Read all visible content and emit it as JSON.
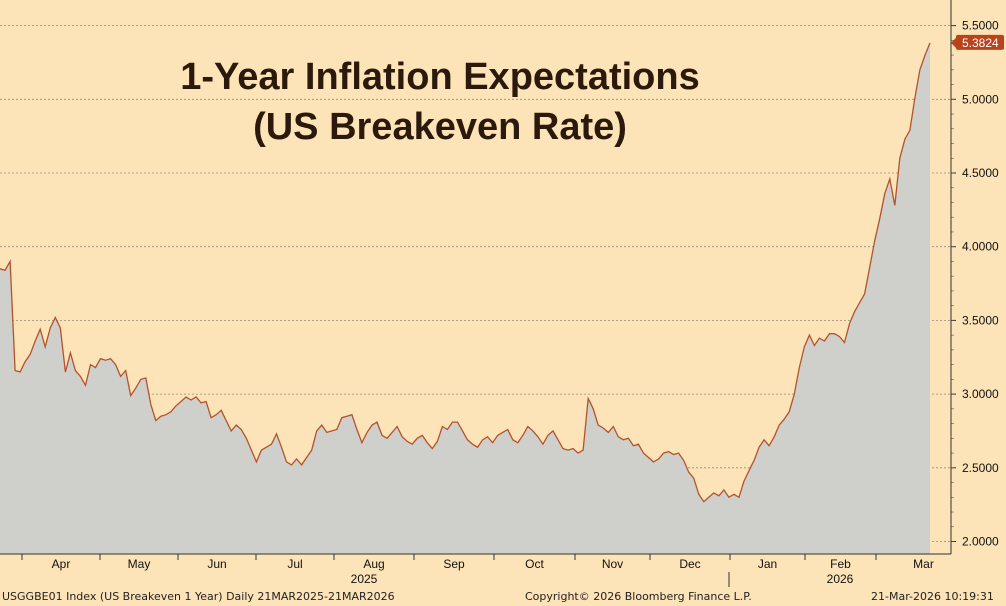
{
  "chart_data": {
    "type": "area",
    "title_line1": "1-Year Inflation Expectations",
    "title_line2": "(US Breakeven Rate)",
    "ylim": [
      1.95,
      5.65
    ],
    "y_ticks": [
      "5.5000",
      "5.0000",
      "4.5000",
      "4.0000",
      "3.5000",
      "3.0000",
      "2.5000",
      "2.0000"
    ],
    "y_tick_values": [
      5.5,
      5.0,
      4.5,
      4.0,
      3.5,
      3.0,
      2.5,
      2.0
    ],
    "last_value_label": "5.3824",
    "last_value": 5.3824,
    "month_labels": [
      "Apr",
      "May",
      "Jun",
      "Jul",
      "Aug",
      "Sep",
      "Oct",
      "Nov",
      "Dec",
      "Jan",
      "Feb",
      "Mar"
    ],
    "year_labels": [
      "2025",
      "2026"
    ],
    "series": [
      {
        "name": "USGGBE01 Index (US Breakeven 1 Year)",
        "x_start": "2025-03-21",
        "x_end": "2026-03-21",
        "values": [
          3.85,
          3.84,
          3.9,
          3.16,
          3.15,
          3.22,
          3.27,
          3.36,
          3.44,
          3.32,
          3.45,
          3.52,
          3.45,
          3.15,
          3.28,
          3.16,
          3.12,
          3.06,
          3.2,
          3.18,
          3.24,
          3.23,
          3.24,
          3.2,
          3.12,
          3.16,
          2.99,
          3.04,
          3.1,
          3.11,
          2.93,
          2.82,
          2.85,
          2.86,
          2.88,
          2.92,
          2.95,
          2.98,
          2.96,
          2.98,
          2.94,
          2.95,
          2.84,
          2.86,
          2.89,
          2.82,
          2.75,
          2.79,
          2.76,
          2.7,
          2.62,
          2.54,
          2.62,
          2.64,
          2.66,
          2.73,
          2.64,
          2.54,
          2.52,
          2.56,
          2.52,
          2.57,
          2.62,
          2.75,
          2.79,
          2.74,
          2.75,
          2.76,
          2.84,
          2.85,
          2.86,
          2.76,
          2.67,
          2.74,
          2.79,
          2.81,
          2.72,
          2.7,
          2.74,
          2.78,
          2.71,
          2.68,
          2.66,
          2.7,
          2.72,
          2.67,
          2.63,
          2.68,
          2.78,
          2.76,
          2.81,
          2.81,
          2.75,
          2.69,
          2.66,
          2.64,
          2.69,
          2.71,
          2.67,
          2.72,
          2.74,
          2.76,
          2.69,
          2.67,
          2.72,
          2.78,
          2.75,
          2.71,
          2.66,
          2.72,
          2.75,
          2.69,
          2.63,
          2.62,
          2.63,
          2.6,
          2.62,
          2.97,
          2.9,
          2.79,
          2.77,
          2.74,
          2.78,
          2.71,
          2.69,
          2.7,
          2.65,
          2.66,
          2.6,
          2.57,
          2.54,
          2.56,
          2.6,
          2.61,
          2.59,
          2.6,
          2.55,
          2.47,
          2.43,
          2.32,
          2.27,
          2.3,
          2.33,
          2.31,
          2.35,
          2.3,
          2.32,
          2.3,
          2.41,
          2.48,
          2.55,
          2.64,
          2.69,
          2.65,
          2.71,
          2.79,
          2.83,
          2.88,
          3.0,
          3.18,
          3.32,
          3.4,
          3.33,
          3.38,
          3.36,
          3.41,
          3.41,
          3.39,
          3.35,
          3.48,
          3.56,
          3.62,
          3.68,
          3.86,
          4.04,
          4.19,
          4.36,
          4.46,
          4.28,
          4.6,
          4.73,
          4.79,
          5.01,
          5.2,
          5.3,
          5.3824
        ]
      }
    ]
  },
  "footer": {
    "left": "USGGBE01 Index (US Breakeven 1 Year) Daily 21MAR2025-21MAR2026",
    "center": "Copyright© 2026 Bloomberg Finance L.P.",
    "right": "21-Mar-2026 10:19:31"
  },
  "colors": {
    "background": "#fde3b8",
    "area_fill": "#cfcfcb",
    "line": "#b3532d",
    "gridline": "#9a8a78",
    "badge": "#b9431c"
  }
}
